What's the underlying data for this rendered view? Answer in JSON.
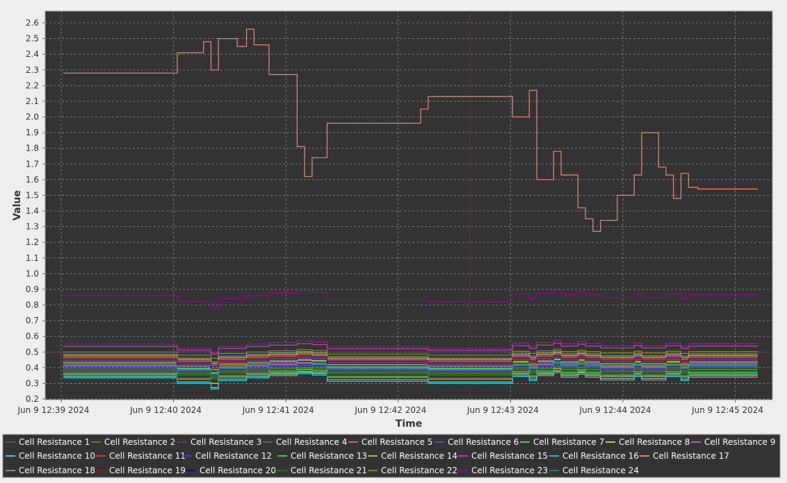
{
  "chart_data": {
    "type": "line",
    "xlabel": "Time",
    "ylabel": "Value",
    "ylim": [
      0.2,
      2.65
    ],
    "xlim_seconds": [
      0,
      375
    ],
    "x_ticks": [
      {
        "t": 0,
        "label": "Jun 9 12:39 2024"
      },
      {
        "t": 60,
        "label": "Jun 9 12:40 2024"
      },
      {
        "t": 120,
        "label": "Jun 9 12:41 2024"
      },
      {
        "t": 180,
        "label": "Jun 9 12:42 2024"
      },
      {
        "t": 240,
        "label": "Jun 9 12:43 2024"
      },
      {
        "t": 300,
        "label": "Jun 9 12:44 2024"
      },
      {
        "t": 360,
        "label": "Jun 9 12:45 2024"
      }
    ],
    "y_ticks": [
      "0.2",
      "0.3",
      "0.4",
      "0.5",
      "0.6",
      "0.7",
      "0.8",
      "0.9",
      "1.0",
      "1.1",
      "1.2",
      "1.3",
      "1.4",
      "1.5",
      "1.6",
      "1.7",
      "1.8",
      "1.9",
      "2.0",
      "2.1",
      "2.2",
      "2.3",
      "2.4",
      "2.5",
      "2.6"
    ],
    "grid": true,
    "marker_line_t": 218,
    "background": "#333333",
    "legend_position": "bottom",
    "series": [
      {
        "name": "Cell Resistance 1",
        "color": "#2e8b2e",
        "base": 0.375,
        "amp": 0.6
      },
      {
        "name": "Cell Resistance 2",
        "color": "#8b8b2e",
        "base": 0.385,
        "amp": 0.6
      },
      {
        "name": "Cell Resistance 3",
        "color": "#8b2e8b",
        "base": 0.55,
        "amp": 0.7
      },
      {
        "name": "Cell Resistance 4",
        "color": "#2e8b8b",
        "base": 0.395,
        "amp": 0.6
      },
      {
        "name": "Cell Resistance 5",
        "color": "#e8806e",
        "base": 0.465,
        "amp": 0.6
      },
      {
        "name": "Cell Resistance 6",
        "color": "#5a5aff",
        "base": 0.405,
        "amp": 0.6
      },
      {
        "name": "Cell Resistance 7",
        "color": "#5aff5a",
        "base": 0.365,
        "amp": 0.8
      },
      {
        "name": "Cell Resistance 8",
        "color": "#ffff5a",
        "base": 0.435,
        "amp": 0.6
      },
      {
        "name": "Cell Resistance 9",
        "color": "#ff5aff",
        "base": 0.415,
        "amp": 0.6
      },
      {
        "name": "Cell Resistance 10",
        "color": "#5affff",
        "base": 0.345,
        "amp": 0.9
      },
      {
        "name": "Cell Resistance 11",
        "color": "#ff4040",
        "base": 0.445,
        "amp": 0.6
      },
      {
        "name": "Cell Resistance 12",
        "color": "#4040ff",
        "base": 0.455,
        "amp": 0.6
      },
      {
        "name": "Cell Resistance 13",
        "color": "#40ff40",
        "base": 0.425,
        "amp": 0.7
      },
      {
        "name": "Cell Resistance 14",
        "color": "#e0e060",
        "base": 0.475,
        "amp": 0.6
      },
      {
        "name": "Cell Resistance 15",
        "color": "#e040e0",
        "base": 0.535,
        "amp": 0.6
      },
      {
        "name": "Cell Resistance 16",
        "color": "#40e0e0",
        "base": 0.335,
        "amp": 0.9
      },
      {
        "name": "Cell Resistance 17",
        "color": "#ffa0a0",
        "base": 0.355,
        "amp": 0.7
      },
      {
        "name": "Cell Resistance 18",
        "color": "#aaaaaa",
        "base": 0.485,
        "amp": 0.6
      },
      {
        "name": "Cell Resistance 19",
        "color": "#c00000",
        "base": 0.46,
        "amp": 0.6
      },
      {
        "name": "Cell Resistance 20",
        "color": "#000080",
        "base": 0.44,
        "amp": 0.6
      },
      {
        "name": "Cell Resistance 21",
        "color": "#00a000",
        "base": 0.36,
        "amp": 0.7
      },
      {
        "name": "Cell Resistance 22",
        "color": "#a0a000",
        "base": 0.5,
        "amp": 0.5
      },
      {
        "name": "Cell Resistance 23",
        "color": "#a000a0",
        "base": 0.86,
        "amp": 1.0
      },
      {
        "name": "Cell Resistance 24",
        "color": "#00a0a0",
        "base": 0.41,
        "amp": 0.6
      }
    ],
    "highlight_series": {
      "color": "#f08878",
      "steps": [
        [
          1,
          2.28
        ],
        [
          62,
          2.28
        ],
        [
          62,
          2.41
        ],
        [
          76,
          2.41
        ],
        [
          76,
          2.48
        ],
        [
          80,
          2.48
        ],
        [
          80,
          2.3
        ],
        [
          84,
          2.3
        ],
        [
          84,
          2.5
        ],
        [
          94,
          2.5
        ],
        [
          94,
          2.45
        ],
        [
          99,
          2.45
        ],
        [
          99,
          2.56
        ],
        [
          103,
          2.56
        ],
        [
          103,
          2.46
        ],
        [
          111,
          2.46
        ],
        [
          111,
          2.27
        ],
        [
          126,
          2.27
        ],
        [
          126,
          1.81
        ],
        [
          130,
          1.81
        ],
        [
          130,
          1.62
        ],
        [
          134,
          1.62
        ],
        [
          134,
          1.74
        ],
        [
          142,
          1.74
        ],
        [
          142,
          1.96
        ],
        [
          192,
          1.96
        ],
        [
          192,
          2.05
        ],
        [
          196,
          2.05
        ],
        [
          196,
          2.13
        ],
        [
          241,
          2.13
        ],
        [
          241,
          2.0
        ],
        [
          250,
          2.0
        ],
        [
          250,
          2.17
        ],
        [
          254,
          2.17
        ],
        [
          254,
          1.6
        ],
        [
          263,
          1.6
        ],
        [
          263,
          1.78
        ],
        [
          267,
          1.78
        ],
        [
          267,
          1.63
        ],
        [
          276,
          1.63
        ],
        [
          276,
          1.42
        ],
        [
          280,
          1.42
        ],
        [
          280,
          1.35
        ],
        [
          284,
          1.35
        ],
        [
          284,
          1.27
        ],
        [
          288,
          1.27
        ],
        [
          288,
          1.34
        ],
        [
          297,
          1.34
        ],
        [
          297,
          1.5
        ],
        [
          306,
          1.5
        ],
        [
          306,
          1.63
        ],
        [
          310,
          1.63
        ],
        [
          310,
          1.9
        ],
        [
          319,
          1.9
        ],
        [
          319,
          1.68
        ],
        [
          323,
          1.68
        ],
        [
          323,
          1.63
        ],
        [
          327,
          1.63
        ],
        [
          327,
          1.48
        ],
        [
          331,
          1.48
        ],
        [
          331,
          1.64
        ],
        [
          335,
          1.64
        ],
        [
          335,
          1.55
        ],
        [
          340,
          1.55
        ],
        [
          340,
          1.54
        ],
        [
          372,
          1.54
        ]
      ]
    },
    "common_pattern": [
      [
        0,
        0
      ],
      [
        62,
        0
      ],
      [
        62,
        -0.04
      ],
      [
        80,
        -0.04
      ],
      [
        80,
        -0.08
      ],
      [
        84,
        -0.08
      ],
      [
        84,
        -0.02
      ],
      [
        99,
        -0.02
      ],
      [
        99,
        0
      ],
      [
        111,
        0
      ],
      [
        111,
        0.015
      ],
      [
        126,
        0.015
      ],
      [
        126,
        0.03
      ],
      [
        134,
        0.03
      ],
      [
        134,
        0.02
      ],
      [
        142,
        0.02
      ],
      [
        142,
        -0.025
      ],
      [
        196,
        -0.025
      ],
      [
        196,
        -0.04
      ],
      [
        241,
        -0.04
      ],
      [
        241,
        0.01
      ],
      [
        250,
        0.01
      ],
      [
        250,
        -0.02
      ],
      [
        254,
        -0.02
      ],
      [
        254,
        0.015
      ],
      [
        263,
        0.015
      ],
      [
        263,
        0.035
      ],
      [
        267,
        0.035
      ],
      [
        267,
        0.005
      ],
      [
        276,
        0.005
      ],
      [
        276,
        0.025
      ],
      [
        280,
        0.025
      ],
      [
        280,
        0.005
      ],
      [
        288,
        0.005
      ],
      [
        288,
        -0.015
      ],
      [
        306,
        -0.015
      ],
      [
        306,
        0.01
      ],
      [
        310,
        0.01
      ],
      [
        310,
        -0.015
      ],
      [
        323,
        -0.015
      ],
      [
        323,
        0.01
      ],
      [
        331,
        0.01
      ],
      [
        331,
        -0.02
      ],
      [
        335,
        -0.02
      ],
      [
        335,
        0.005
      ],
      [
        375,
        0.005
      ]
    ]
  }
}
